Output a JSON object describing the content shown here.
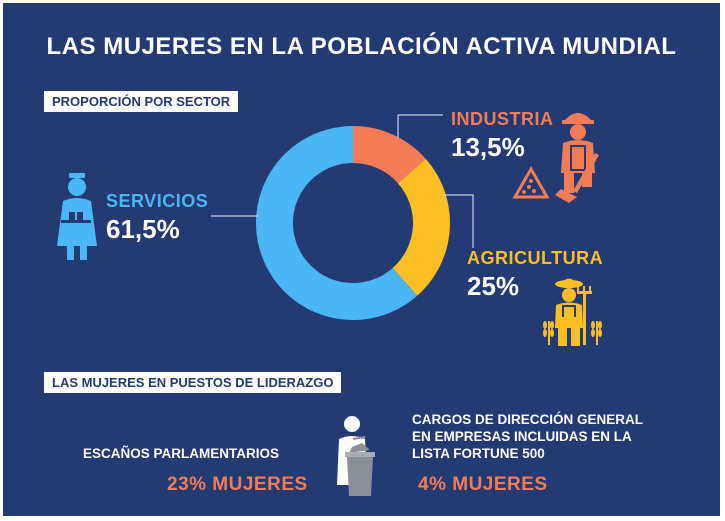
{
  "title": "LAS MUJERES EN LA POBLACIÓN ACTIVA MUNDIAL",
  "section1_label": "PROPORCIÓN POR SECTOR",
  "section2_label": "LAS MUJERES EN PUESTOS DE LIDERAZGO",
  "chart_data": {
    "type": "pie",
    "donut": true,
    "categories": [
      "INDUSTRIA",
      "AGRICULTURA",
      "SERVICIOS"
    ],
    "values": [
      13.5,
      25,
      61.5
    ],
    "value_labels": [
      "13,5%",
      "25%",
      "61,5%"
    ],
    "colors": [
      "#f47c55",
      "#fbbf24",
      "#4bb6f5"
    ]
  },
  "leadership": {
    "parliament_label": "ESCAÑOS PARLAMENTARIOS",
    "parliament_value": "23% MUJERES",
    "fortune_label_lines": [
      "CARGOS DE DIRECCIÓN GENERAL",
      "EN EMPRESAS INCLUIDAS EN LA",
      "LISTA FORTUNE 500"
    ],
    "fortune_value": "4% MUJERES"
  },
  "icons": [
    "nurse-icon",
    "construction-worker-icon",
    "farmer-icon",
    "speaker-podium-icon"
  ]
}
